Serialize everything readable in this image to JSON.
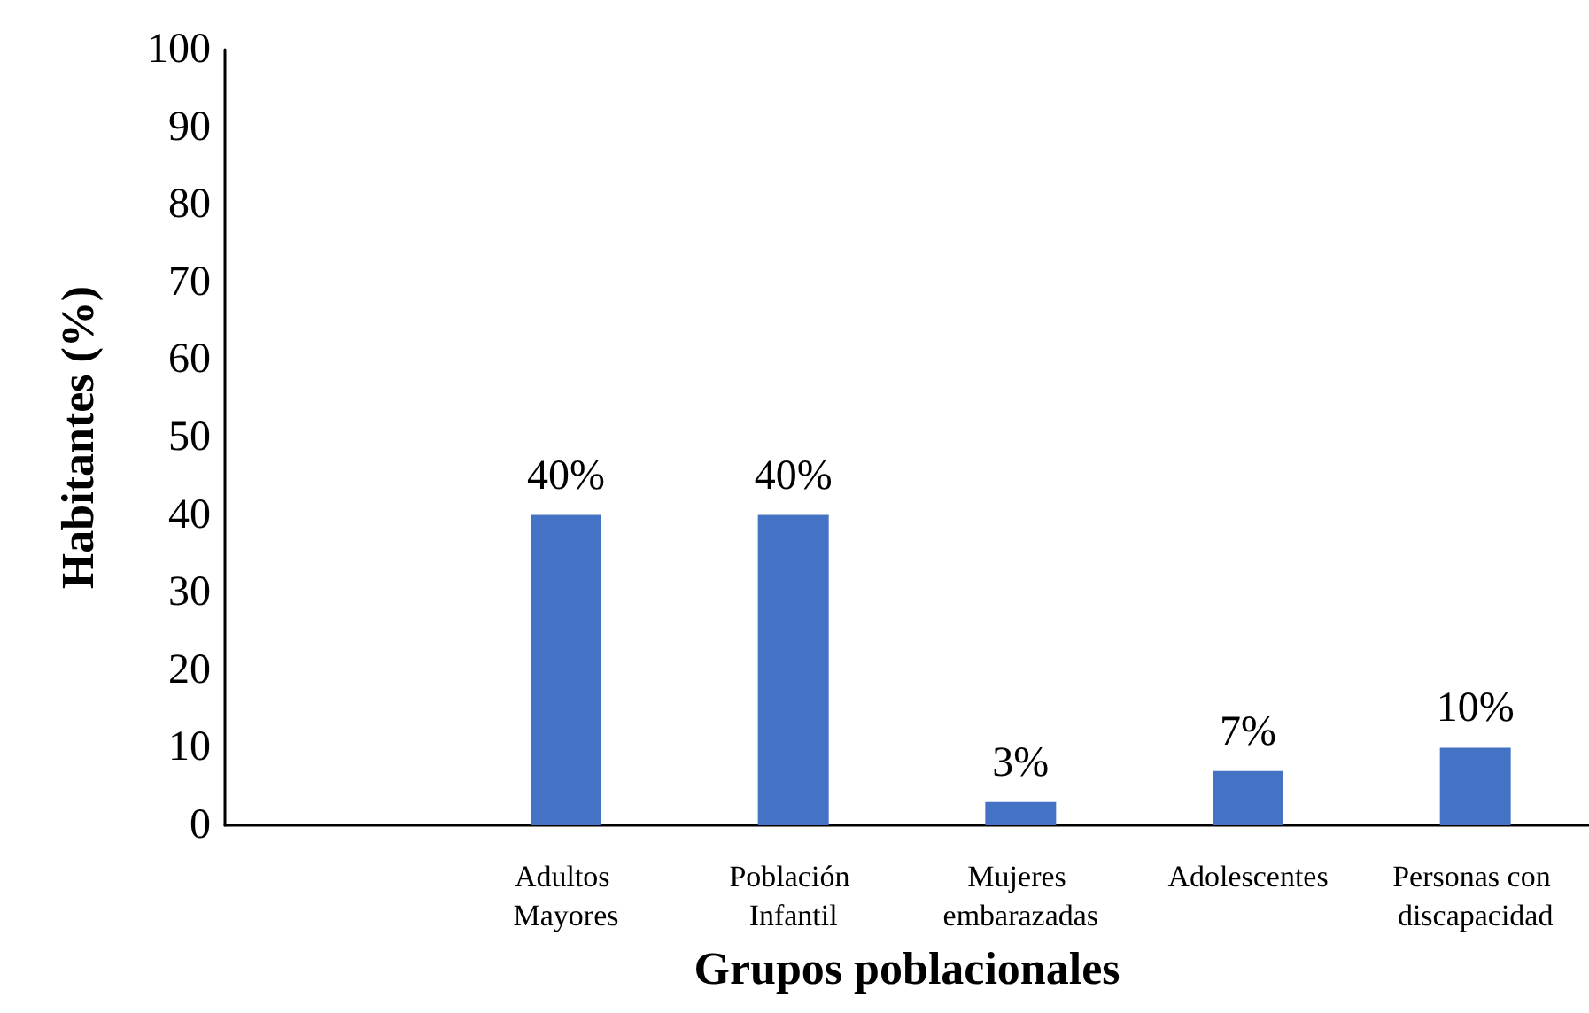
{
  "chart_data": {
    "type": "bar",
    "xlabel": "Grupos poblacionales",
    "ylabel": "Habitantes (%)",
    "categories": [
      null,
      "Adultos Mayores",
      "Población Infantil",
      "Mujeres embarazadas",
      "Adolescentes",
      "Personas con discapacidad"
    ],
    "values": [
      null,
      40,
      40,
      3,
      7,
      10
    ],
    "value_labels": [
      null,
      "40%",
      "40%",
      "3%",
      "7%",
      "10%"
    ],
    "color": "#4472c4",
    "ylim": [
      0,
      100
    ],
    "yticks": [
      0,
      10,
      20,
      30,
      40,
      50,
      60,
      70,
      80,
      90,
      100
    ],
    "grid": false
  }
}
